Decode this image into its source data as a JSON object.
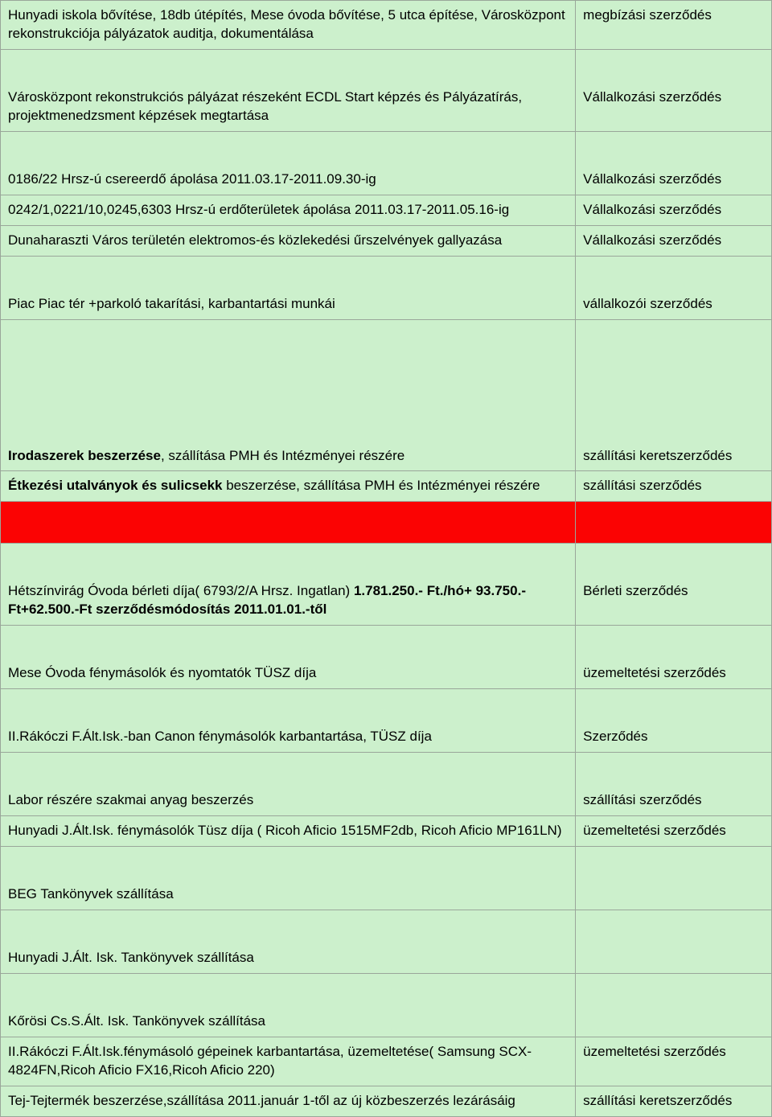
{
  "rows": [
    {
      "left": "Hunyadi iskola bővítése, 18db útépítés, Mese óvoda bővítése, 5 utca építése, Városközpont rekonstrukciója pályázatok auditja, dokumentálása",
      "right": "megbízási szerződés",
      "cls": "green tight"
    },
    {
      "left": "Városközpont rekonstrukciós pályázat részeként ECDL Start képzés és Pályázatírás, projektmenedzsment képzések megtartása",
      "right": "Vállalkozási szerződés",
      "cls": "green gap"
    },
    {
      "left": "0186/22 Hrsz-ú csereerdő ápolása 2011.03.17-2011.09.30-ig",
      "right": "Vállalkozási szerződés",
      "cls": "green gap"
    },
    {
      "left": "0242/1,0221/10,0245,6303 Hrsz-ú erdőterületek ápolása 2011.03.17-2011.05.16-ig",
      "right": "Vállalkozási szerződés",
      "cls": "green"
    },
    {
      "left": "Dunaharaszti Város területén elektromos-és közlekedési űrszelvények gallyazása",
      "right": "Vállalkozási szerződés",
      "cls": "green"
    },
    {
      "left": "Piac Piac tér +parkoló takarítási, karbantartási munkái",
      "right": "vállalkozói szerződés",
      "cls": "green gap"
    },
    {
      "leftHtml": "<b>Irodaszerek beszerzése</b>, szállítása PMH és Intézményei részére",
      "right": "szállítási keretszerződés",
      "cls": "green gap2"
    },
    {
      "leftHtml": "<b>Étkezési utalványok és sulicsekk</b> beszerzése, szállítása PMH és Intézményei részére",
      "right": "szállítási szerződés",
      "cls": "green"
    },
    {
      "left": "",
      "right": "",
      "cls": "red redrow"
    },
    {
      "leftHtml": "Hétszínvirág Óvoda bérleti díja( 6793/2/A Hrsz. Ingatlan) <b>1.781.250.- Ft./hó+ 93.750.-Ft+62.500.-Ft szerződésmódosítás 2011.01.01.-től</b>",
      "right": "Bérleti szerződés",
      "cls": "green gap"
    },
    {
      "left": "Mese Óvoda fénymásolók és nyomtatók TÜSZ díja",
      "right": "üzemeltetési szerződés",
      "cls": "green gap"
    },
    {
      "left": "II.Rákóczi F.Ált.Isk.-ban Canon fénymásolók karbantartása, TÜSZ díja",
      "right": "Szerződés",
      "cls": "green gap"
    },
    {
      "left": "Labor részére szakmai anyag beszerzés",
      "right": "szállítási szerződés",
      "cls": "green gap"
    },
    {
      "left": "Hunyadi J.Ált.Isk. fénymásolók Tüsz díja ( Ricoh Aficio 1515MF2db, Ricoh Aficio MP161LN)",
      "right": "üzemeltetési szerződés",
      "cls": "green"
    },
    {
      "left": "BEG Tankönyvek szállítása",
      "right": "",
      "cls": "green gap"
    },
    {
      "left": "Hunyadi J.Ált. Isk.  Tankönyvek szállítása",
      "right": "",
      "cls": "green gap"
    },
    {
      "left": "Kőrösi Cs.S.Ált. Isk.  Tankönyvek szállítása",
      "right": "",
      "cls": "green gap"
    },
    {
      "left": "II.Rákóczi F.Ált.Isk.fénymásoló gépeinek karbantartása, üzemeltetése( Samsung SCX-4824FN,Ricoh Aficio FX16,Ricoh Aficio 220)",
      "right": "üzemeltetési szerződés",
      "cls": "green"
    },
    {
      "left": "Tej-Tejtermék beszerzése,szállítása 2011.január 1-től az új közbeszerzés lezárásáig",
      "right": "szállítási keretszerződés",
      "cls": "green"
    }
  ]
}
